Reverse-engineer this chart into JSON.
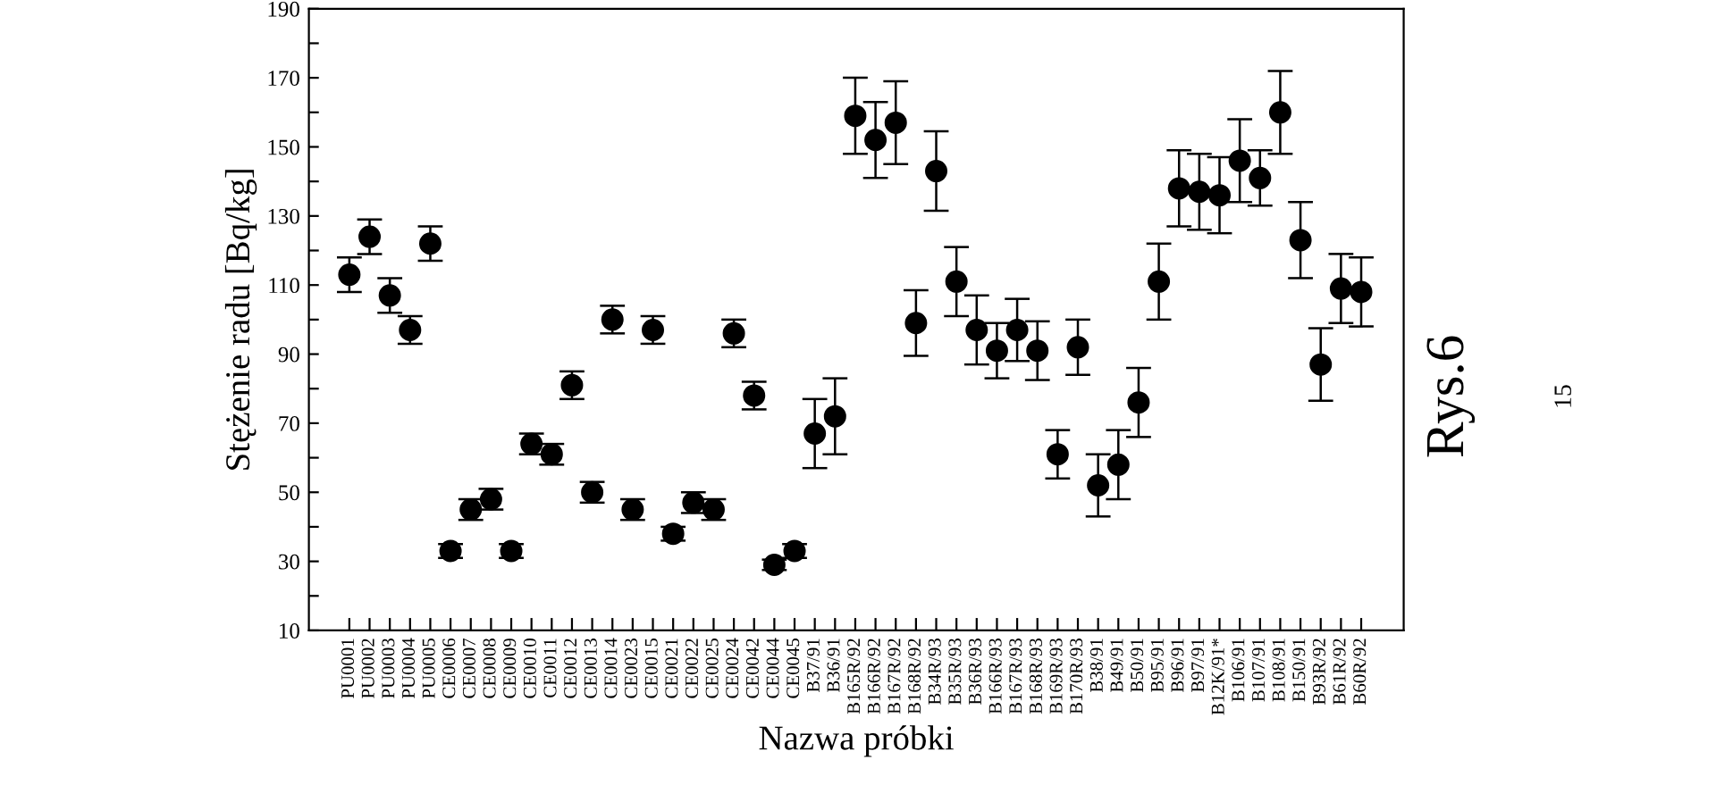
{
  "chart_data": {
    "type": "scatter",
    "xlabel": "Nazwa próbki",
    "ylabel": "Stężenie radu [Bq/kg]",
    "categories": [
      "PU0001",
      "PU0002",
      "PU0003",
      "PU0004",
      "PU0005",
      "CE0006",
      "CE0007",
      "CE0008",
      "CE0009",
      "CE0010",
      "CE0011",
      "CE0012",
      "CE0013",
      "CE0014",
      "CE0023",
      "CE0015",
      "CE0021",
      "CE0022",
      "CE0025",
      "CE0024",
      "CE0042",
      "CE0044",
      "CE0045",
      "B37/91",
      "B36/91",
      "B165R/92",
      "B166R/92",
      "B167R/92",
      "B168R/92",
      "B34R/93",
      "B35R/93",
      "B36R/93",
      "B166R/93",
      "B167R/93",
      "B168R/93",
      "B169R/93",
      "B170R/93",
      "B38/91",
      "B49/91",
      "B50/91",
      "B95/91",
      "B96/91",
      "B97/91",
      "B12K/91*",
      "B106/91",
      "B107/91",
      "B108/91",
      "B150/91",
      "B93R/92",
      "B61R/92",
      "B60R/92"
    ],
    "series": [
      {
        "color": "#000000",
        "values": [
          113,
          124,
          107,
          97,
          122,
          33,
          45,
          48,
          33,
          64,
          61,
          81,
          50,
          100,
          45,
          97,
          38,
          47,
          45,
          96,
          78,
          29,
          33,
          67,
          72,
          159,
          152,
          157,
          99,
          143,
          111,
          97,
          91,
          97,
          91,
          61,
          92,
          52,
          58,
          76,
          111,
          138,
          137,
          136,
          146,
          141,
          160,
          123,
          87,
          109,
          108
        ],
        "errors": [
          5,
          5,
          5,
          4,
          5,
          2,
          3,
          3,
          2,
          3,
          3,
          4,
          3,
          4,
          3,
          4,
          2,
          3,
          3,
          4,
          4,
          1.5,
          2,
          10,
          11,
          11,
          11,
          12,
          9.5,
          11.5,
          10,
          10,
          8,
          9,
          8.5,
          7,
          8,
          9,
          10,
          10,
          11,
          11,
          11,
          11,
          12,
          8,
          12,
          11,
          10.5,
          10,
          10
        ]
      }
    ],
    "ylim": [
      10,
      190
    ],
    "yticks": [
      10,
      {
        "value": 20,
        "label": null
      },
      30,
      {
        "value": 40,
        "label": null
      },
      50,
      {
        "value": 60,
        "label": null
      },
      70,
      {
        "value": 80,
        "label": null
      },
      90,
      {
        "value": 100,
        "label": null
      },
      110,
      {
        "value": 120,
        "label": null
      },
      130,
      {
        "value": 140,
        "label": null
      },
      150,
      {
        "value": 160,
        "label": null
      },
      170,
      {
        "value": 180,
        "label": null
      },
      190
    ],
    "marker": "circle",
    "grid": false,
    "legend": false,
    "annotations": [
      "Rys.6",
      "15"
    ]
  }
}
